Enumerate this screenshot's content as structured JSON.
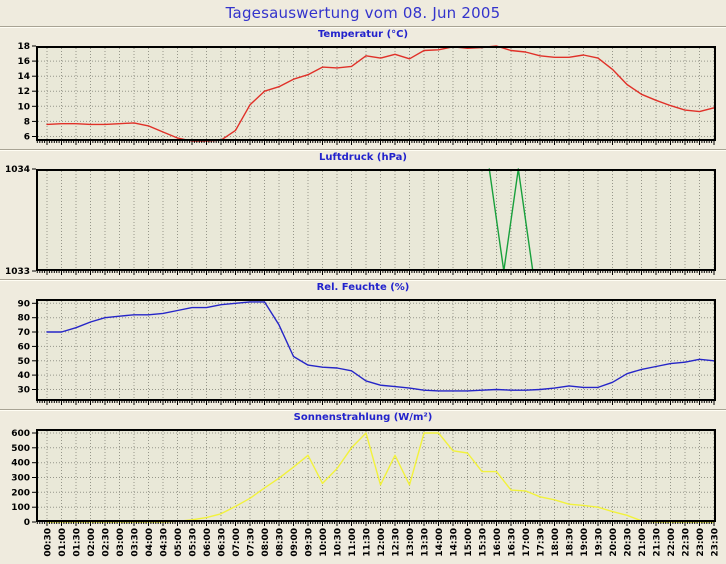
{
  "page": {
    "title": "Tagesauswertung vom 08. Jun 2005",
    "title_color": "#3333cc"
  },
  "chart_data": {
    "type": "line",
    "x_categories": [
      "00:30",
      "01:00",
      "01:30",
      "02:00",
      "02:30",
      "03:00",
      "03:30",
      "04:00",
      "04:30",
      "05:00",
      "05:30",
      "06:00",
      "06:30",
      "07:00",
      "07:30",
      "08:00",
      "08:30",
      "09:00",
      "09:30",
      "10:00",
      "10:30",
      "11:00",
      "11:30",
      "12:00",
      "12:30",
      "13:00",
      "13:30",
      "14:00",
      "14:30",
      "15:00",
      "15:30",
      "16:00",
      "16:30",
      "17:00",
      "17:30",
      "18:00",
      "18:30",
      "19:00",
      "19:30",
      "20:00",
      "20:30",
      "21:00",
      "21:30",
      "22:00",
      "22:30",
      "23:00",
      "23:30"
    ],
    "grid": "dashed",
    "charts": [
      {
        "id": "temperature",
        "title": "Temperatur (°C)",
        "color": "#e03028",
        "y_min": 5.4,
        "y_max": 18,
        "y_ticks": [
          6,
          8,
          10,
          12,
          14,
          16,
          18
        ],
        "values": [
          7.6,
          7.7,
          7.7,
          7.6,
          7.6,
          7.7,
          7.8,
          7.4,
          6.6,
          5.8,
          5.4,
          5.4,
          5.5,
          6.8,
          10.2,
          12.0,
          12.6,
          13.6,
          14.2,
          15.2,
          15.1,
          15.3,
          16.7,
          16.4,
          16.9,
          16.3,
          17.4,
          17.5,
          17.9,
          17.7,
          17.8,
          18.0,
          17.4,
          17.2,
          16.7,
          16.5,
          16.5,
          16.8,
          16.4,
          14.9,
          12.9,
          11.6,
          10.8,
          10.1,
          9.5,
          9.3,
          9.8
        ]
      },
      {
        "id": "pressure",
        "title": "Luftdruck (hPa)",
        "color": "#18a03c",
        "y_min": 1033,
        "y_max": 1034,
        "y_ticks": [
          1033,
          1034
        ],
        "points": [
          [
            "15:45",
            1034
          ],
          [
            "16:15",
            1033
          ],
          [
            "16:45",
            1034
          ],
          [
            "17:15",
            1033
          ]
        ]
      },
      {
        "id": "humidity",
        "title": "Rel. Feuchte (%)",
        "color": "#2525c8",
        "y_min": 22,
        "y_max": 93,
        "y_ticks": [
          30,
          40,
          50,
          60,
          70,
          80,
          90
        ],
        "values": [
          70,
          70,
          73,
          77,
          80,
          81,
          82,
          82,
          83,
          85,
          87,
          87,
          89,
          90,
          91,
          91,
          75,
          53,
          47,
          45.5,
          45,
          43,
          36,
          33,
          32,
          31,
          29.5,
          29,
          29,
          29,
          29.5,
          30,
          29.5,
          29.5,
          30,
          31,
          32.5,
          31.5,
          31.5,
          35,
          41,
          44,
          46,
          48,
          49,
          51,
          50
        ]
      },
      {
        "id": "radiation",
        "title": "Sonnenstrahlung (W/m²)",
        "color": "#f2f23c",
        "y_min": 0,
        "y_max": 627,
        "y_ticks": [
          0,
          100,
          200,
          300,
          400,
          500,
          600
        ],
        "show_x_labels": true,
        "values": [
          0,
          0,
          0,
          0,
          0,
          0,
          0,
          0,
          0,
          5,
          15,
          30,
          55,
          105,
          160,
          230,
          295,
          370,
          450,
          260,
          360,
          500,
          600,
          250,
          450,
          250,
          600,
          600,
          480,
          465,
          340,
          340,
          215,
          210,
          170,
          150,
          120,
          112,
          100,
          70,
          45,
          8,
          0,
          0,
          0,
          0,
          0
        ]
      }
    ]
  }
}
